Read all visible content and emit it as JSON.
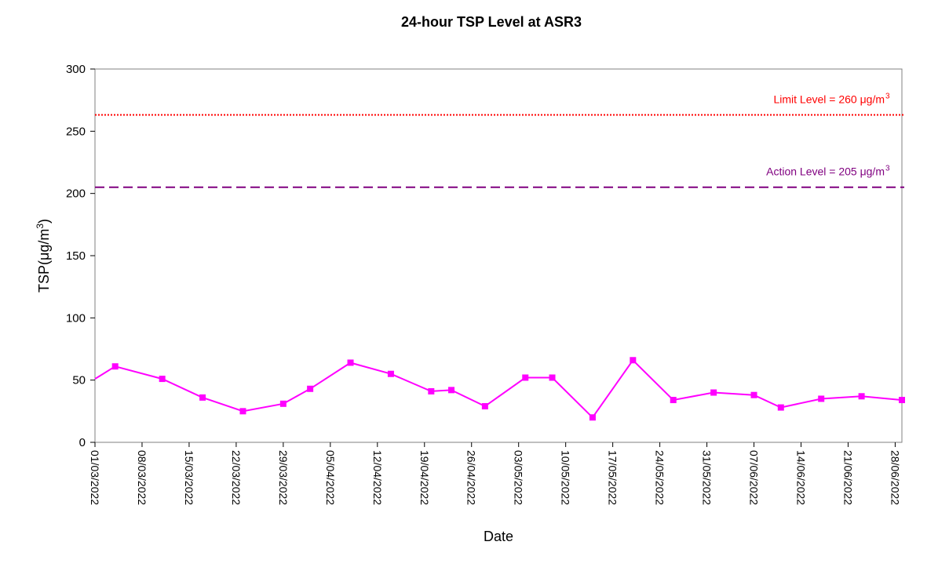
{
  "chart_data": {
    "type": "line",
    "title": "24-hour TSP Level at ASR3",
    "xlabel": "Date",
    "ylabel": {
      "prefix": "TSP(",
      "mu": "μ",
      "unit": "g/m",
      "sup": "3",
      "suffix": ")"
    },
    "ylim": [
      0,
      300
    ],
    "yticks": [
      "0",
      "50",
      "100",
      "150",
      "200",
      "250",
      "300"
    ],
    "xlim": [
      "2022-03-01",
      "2022-06-29"
    ],
    "xticks": [
      "01/03/2022",
      "08/03/2022",
      "15/03/2022",
      "22/03/2022",
      "29/03/2022",
      "05/04/2022",
      "12/04/2022",
      "19/04/2022",
      "26/04/2022",
      "03/05/2022",
      "10/05/2022",
      "17/05/2022",
      "24/05/2022",
      "31/05/2022",
      "07/06/2022",
      "14/06/2022",
      "21/06/2022",
      "28/06/2022"
    ],
    "series": [
      {
        "color": "#ff00ff",
        "marker": "square",
        "points": [
          {
            "x": "2022-02-28",
            "y": 51
          },
          {
            "x": "2022-03-04",
            "y": 61
          },
          {
            "x": "2022-03-11",
            "y": 51
          },
          {
            "x": "2022-03-17",
            "y": 36
          },
          {
            "x": "2022-03-23",
            "y": 25
          },
          {
            "x": "2022-03-29",
            "y": 31
          },
          {
            "x": "2022-04-02",
            "y": 43
          },
          {
            "x": "2022-04-08",
            "y": 64
          },
          {
            "x": "2022-04-14",
            "y": 55
          },
          {
            "x": "2022-04-20",
            "y": 41
          },
          {
            "x": "2022-04-23",
            "y": 42
          },
          {
            "x": "2022-04-28",
            "y": 29
          },
          {
            "x": "2022-05-04",
            "y": 52
          },
          {
            "x": "2022-05-08",
            "y": 52
          },
          {
            "x": "2022-05-14",
            "y": 20
          },
          {
            "x": "2022-05-20",
            "y": 66
          },
          {
            "x": "2022-05-26",
            "y": 34
          },
          {
            "x": "2022-06-01",
            "y": 40
          },
          {
            "x": "2022-06-07",
            "y": 38
          },
          {
            "x": "2022-06-11",
            "y": 28
          },
          {
            "x": "2022-06-17",
            "y": 35
          },
          {
            "x": "2022-06-23",
            "y": 37
          },
          {
            "x": "2022-06-29",
            "y": 34
          }
        ]
      }
    ],
    "reference_lines": [
      {
        "label": "Limit Level = 260 μg/m",
        "sup": "3",
        "y": 260,
        "color": "#ff0000",
        "style": "dotted"
      },
      {
        "label": "Action Level = 205 μg/m",
        "sup": "3",
        "y": 205,
        "color": "#800080",
        "style": "dashed"
      }
    ],
    "grid": false,
    "legend": "none"
  }
}
